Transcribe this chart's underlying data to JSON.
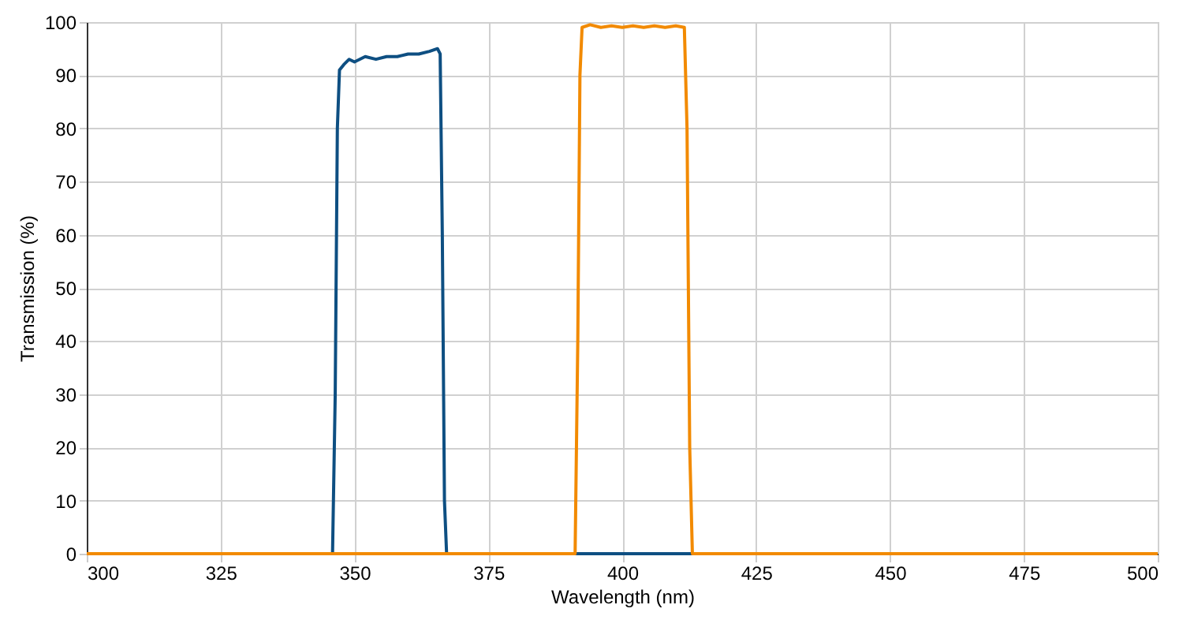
{
  "chart_data": {
    "type": "line",
    "xlabel": "Wavelength (nm)",
    "ylabel": "Transmission (%)",
    "xlim": [
      300,
      500
    ],
    "xticks": [
      300,
      325,
      350,
      375,
      400,
      425,
      450,
      475,
      500
    ],
    "ylim": [
      0,
      100
    ],
    "yticks": [
      0,
      10,
      20,
      30,
      40,
      50,
      60,
      70,
      80,
      90,
      100
    ],
    "grid": true,
    "marker": "none",
    "line_style": "solid",
    "series": [
      {
        "color": "#0e4f82",
        "x": [
          300,
          345.9,
          346.4,
          346.8,
          347.2,
          348,
          349,
          350,
          352,
          354,
          356,
          358,
          360,
          362,
          364,
          365.5,
          366,
          366.4,
          366.8,
          367.2,
          500
        ],
        "values": [
          0,
          0,
          30,
          80,
          91,
          92,
          93,
          92.5,
          93.5,
          93,
          93.5,
          93.5,
          94,
          94,
          94.5,
          95,
          94,
          60,
          10,
          0,
          0
        ]
      },
      {
        "color": "#f28a00",
        "x": [
          300,
          391.2,
          391.7,
          392.1,
          392.5,
          394,
          396,
          398,
          400,
          402,
          404,
          406,
          408,
          410,
          411.6,
          412.1,
          412.6,
          413.1,
          500
        ],
        "values": [
          0,
          0,
          40,
          90,
          99,
          99.5,
          99,
          99.3,
          99,
          99.3,
          99,
          99.3,
          99,
          99.3,
          99,
          80,
          20,
          0,
          0
        ]
      }
    ]
  }
}
